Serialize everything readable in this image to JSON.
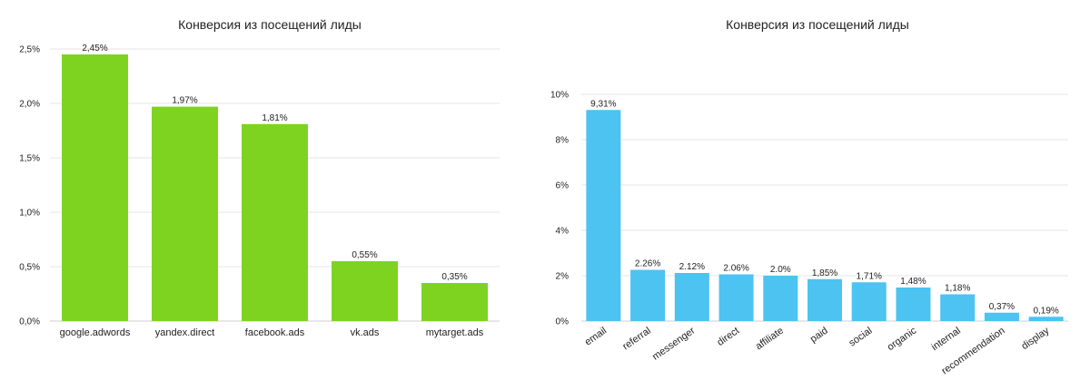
{
  "chart_data": [
    {
      "type": "bar",
      "title": "Конверсия из посещений лиды",
      "categories": [
        "google.adwords",
        "yandex.direct",
        "facebook.ads",
        "vk.ads",
        "mytarget.ads"
      ],
      "values": [
        2.45,
        1.97,
        1.81,
        0.55,
        0.35
      ],
      "data_labels": [
        "2,45%",
        "1,97%",
        "1,81%",
        "0,55%",
        "0,35%"
      ],
      "yticks": [
        0,
        0.5,
        1.0,
        1.5,
        2.0,
        2.5
      ],
      "ytick_labels": [
        "0,0%",
        "0,5%",
        "1,0%",
        "1,5%",
        "2,0%",
        "2,5%"
      ],
      "ylim": [
        0,
        2.5
      ],
      "grid": true,
      "color": "#7ed321"
    },
    {
      "type": "bar",
      "title": "Конверсия из посещений лиды",
      "categories": [
        "email",
        "referral",
        "messenger",
        "direct",
        "affiliate",
        "paid",
        "social",
        "organic",
        "internal",
        "recommendation",
        "display"
      ],
      "values": [
        9.31,
        2.26,
        2.12,
        2.06,
        2.0,
        1.85,
        1.71,
        1.48,
        1.18,
        0.37,
        0.19
      ],
      "data_labels": [
        "9,31%",
        "2.26%",
        "2.12%",
        "2.06%",
        "2.0%",
        "1,85%",
        "1,71%",
        "1,48%",
        "1,18%",
        "0,37%",
        "0,19%"
      ],
      "yticks": [
        0,
        2,
        4,
        6,
        8,
        10
      ],
      "ytick_labels": [
        "0%",
        "2%",
        "4%",
        "6%",
        "8%",
        "10%"
      ],
      "ylim": [
        0,
        10
      ],
      "grid": true,
      "color": "#4cc3f1"
    }
  ]
}
